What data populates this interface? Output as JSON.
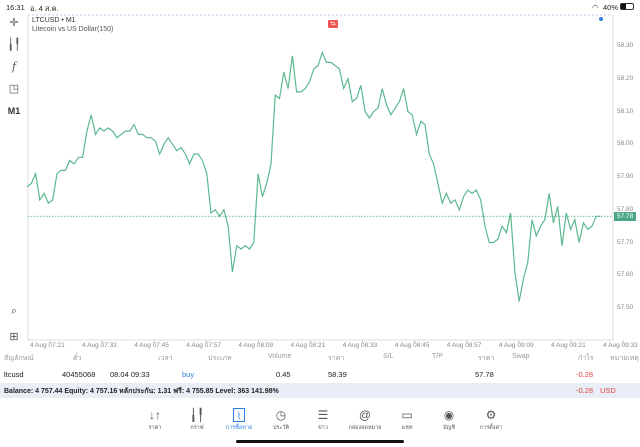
{
  "status_bar": {
    "time": "16:31",
    "date": "อ. 4 ส.ค.",
    "battery": "40%"
  },
  "chart": {
    "symbol_line": "LTCUSD • M1",
    "description": "Litecoin vs US Dollar(150)",
    "current_price": "57.78",
    "line_color": "#5cb88f"
  },
  "left_toolbar": {
    "timeframe": "M1",
    "icons": [
      "crosshair-icon",
      "candlestick-icon",
      "function-icon",
      "shapes-icon",
      "zoom-icon",
      "add-icon"
    ]
  },
  "chart_data": {
    "type": "line",
    "x_ticks": [
      "4 Aug 07:21",
      "4 Aug 07:33",
      "4 Aug 07:45",
      "4 Aug 07:57",
      "4 Aug 08:09",
      "4 Aug 08:21",
      "4 Aug 08:33",
      "4 Aug 08:45",
      "4 Aug 08:57",
      "4 Aug 09:09",
      "4 Aug 09:21",
      "4 Aug 09:33"
    ],
    "y_ticks": [
      "58.30",
      "58.20",
      "58.10",
      "58.00",
      "57.90",
      "57.80",
      "57.70",
      "57.60",
      "57.50"
    ],
    "ylim": [
      57.45,
      58.3
    ],
    "current_price_line": 57.78,
    "values": [
      57.87,
      57.88,
      57.91,
      57.83,
      57.85,
      57.82,
      57.83,
      57.91,
      57.92,
      57.92,
      57.95,
      57.94,
      57.96,
      57.96,
      58.04,
      58.09,
      58.03,
      58.05,
      58.04,
      58.05,
      58.04,
      58.02,
      58.03,
      58.04,
      58.04,
      58.06,
      58.03,
      58.03,
      58.02,
      58.02,
      58.01,
      57.97,
      58.0,
      58.02,
      58.0,
      57.98,
      57.99,
      57.97,
      57.94,
      57.97,
      57.97,
      57.95,
      57.91,
      57.79,
      57.8,
      57.78,
      57.8,
      57.75,
      57.61,
      57.69,
      57.68,
      57.69,
      57.68,
      57.7,
      57.91,
      57.84,
      57.88,
      57.94,
      58.15,
      58.14,
      58.22,
      58.17,
      58.27,
      58.16,
      58.16,
      58.17,
      58.19,
      58.23,
      58.24,
      58.28,
      58.25,
      58.25,
      58.24,
      58.23,
      58.17,
      58.2,
      58.13,
      58.14,
      58.18,
      58.1,
      58.08,
      58.1,
      58.11,
      58.17,
      58.12,
      58.09,
      58.11,
      58.13,
      58.17,
      58.1,
      58.09,
      58.03,
      58.07,
      58.06,
      57.97,
      57.94,
      57.88,
      57.82,
      57.85,
      57.82,
      57.83,
      57.8,
      57.84,
      57.86,
      57.85,
      57.86,
      57.83,
      57.75,
      57.7,
      57.7,
      57.71,
      57.75,
      57.73,
      57.79,
      57.61,
      57.52,
      57.59,
      57.64,
      57.77,
      57.72,
      57.75,
      57.77,
      57.85,
      57.76,
      57.81,
      57.69,
      57.79,
      57.74,
      57.77,
      57.7,
      57.76,
      57.74,
      57.75,
      57.78,
      57.78
    ]
  },
  "positions": {
    "headers": [
      "สัญลักษณ์",
      "ตั๋ว",
      "เวลา",
      "ประเภท",
      "Volume",
      "ราคา",
      "S/L",
      "T/P",
      "ราคา",
      "Swap",
      "กำไร",
      "หมายเหตุ"
    ],
    "row": {
      "symbol": "ltcusd",
      "ticket": "40455068",
      "time": "08.04 09:33",
      "type": "buy",
      "volume": "0.45",
      "open_price": "58.39",
      "current_price": "57.78",
      "profit": "-0.28"
    }
  },
  "balance": {
    "text": "Balance: 4 757.44 Equity: 4 757.16 หลักประกัน: 1.31 ฟรี: 4 755.85 Level: 363 141.98%",
    "profit": "-0.28",
    "currency": "USD"
  },
  "tabs": [
    {
      "label": "ราคา",
      "icon": "quotes-icon"
    },
    {
      "label": "กราฟ",
      "icon": "chart-icon"
    },
    {
      "label": "การซื้อขาย",
      "icon": "trade-icon",
      "active": true
    },
    {
      "label": "ประวัติ",
      "icon": "history-icon"
    },
    {
      "label": "ข่าว",
      "icon": "news-icon"
    },
    {
      "label": "กล่องจดหมาย",
      "icon": "mailbox-icon"
    },
    {
      "label": "แชท",
      "icon": "chat-icon"
    },
    {
      "label": "บัญชี",
      "icon": "account-icon"
    },
    {
      "label": "การตั้งค่า",
      "icon": "settings-icon"
    }
  ]
}
